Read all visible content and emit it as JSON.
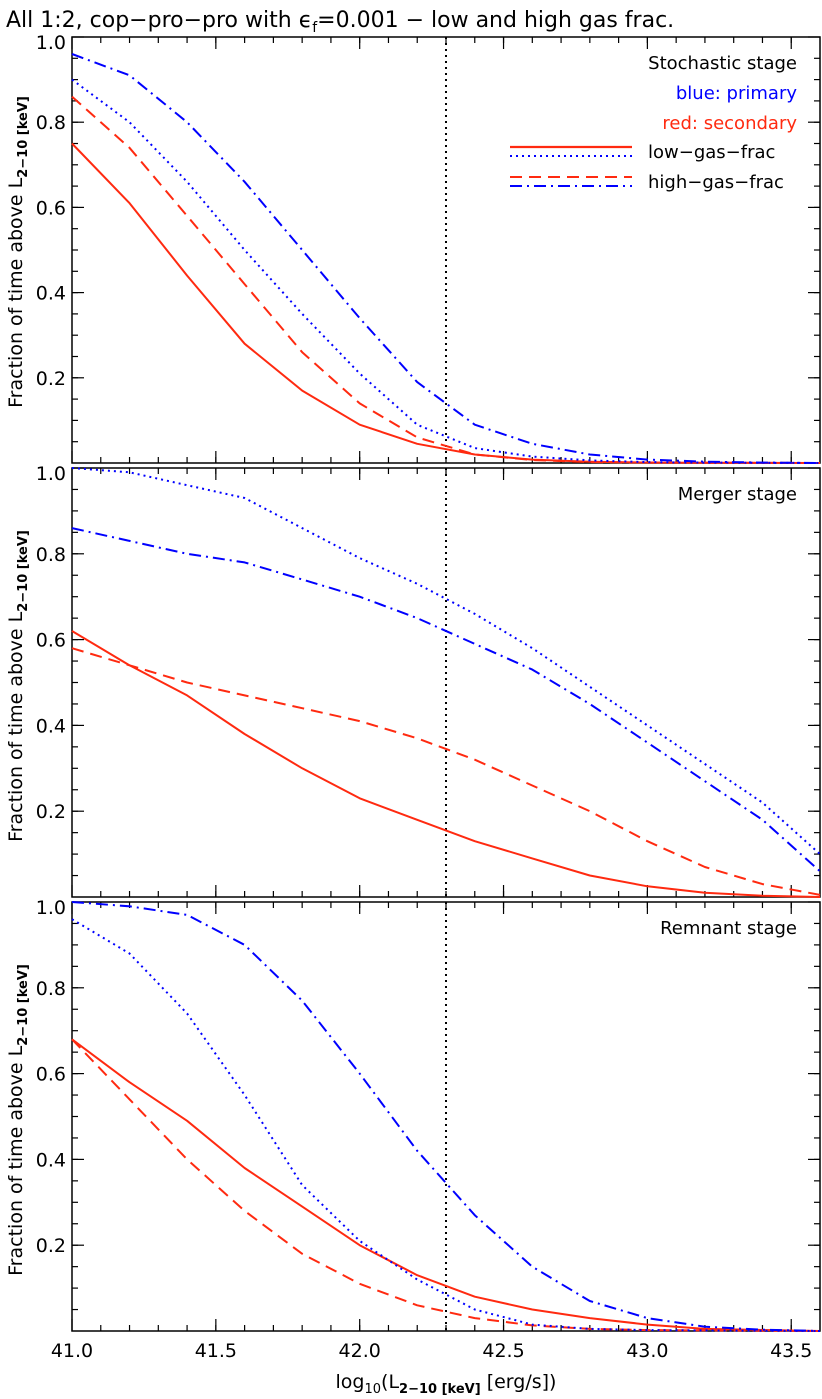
{
  "title_parts": {
    "pre": "All 1:2, cop−pro−pro with ",
    "eps": "ϵ",
    "eps_sub": "f",
    "post": "=0.001 − low and high gas frac."
  },
  "xlabel_parts": {
    "pre": "log",
    "sub1": "10",
    "mid": "(L",
    "sub2": "2−10 [keV]",
    "post": " [erg/s])"
  },
  "ylabel_parts": {
    "pre": "Fraction of time above L",
    "sub": "2−10 [keV]"
  },
  "legend": {
    "primary": "blue: primary",
    "secondary": "red: secondary",
    "low": "low−gas−frac",
    "high": "high−gas−frac"
  },
  "colors": {
    "primary": "#0000ff",
    "secondary": "#ff2a10",
    "refline": "#000000"
  },
  "chart_data": [
    {
      "type": "line",
      "annotation": "Stochastic stage",
      "xlim": [
        41.0,
        43.6
      ],
      "ylim": [
        0.0,
        1.0
      ],
      "xticks": [
        41.0,
        41.5,
        42.0,
        42.5,
        43.0,
        43.5
      ],
      "yticks": [
        0.2,
        0.4,
        0.6,
        0.8,
        1.0
      ],
      "vline_x": 42.3,
      "series": [
        {
          "name": "secondary, low-gas-frac",
          "color": "secondary",
          "dash": "solid",
          "x": [
            41.0,
            41.2,
            41.4,
            41.6,
            41.8,
            42.0,
            42.2,
            42.4,
            42.6,
            42.8,
            43.0,
            43.6
          ],
          "y": [
            0.75,
            0.61,
            0.44,
            0.28,
            0.17,
            0.09,
            0.045,
            0.02,
            0.008,
            0.003,
            0.001,
            0.0
          ]
        },
        {
          "name": "secondary, high-gas-frac",
          "color": "secondary",
          "dash": "dash",
          "x": [
            41.0,
            41.2,
            41.4,
            41.6,
            41.8,
            42.0,
            42.2,
            42.4,
            42.6,
            42.8,
            43.0,
            43.6
          ],
          "y": [
            0.86,
            0.74,
            0.58,
            0.42,
            0.26,
            0.14,
            0.06,
            0.02,
            0.007,
            0.002,
            0.001,
            0.0
          ]
        },
        {
          "name": "primary, low-gas-frac",
          "color": "primary",
          "dash": "dot",
          "x": [
            41.0,
            41.2,
            41.4,
            41.6,
            41.8,
            42.0,
            42.2,
            42.4,
            42.6,
            42.8,
            43.0,
            43.2,
            43.6
          ],
          "y": [
            0.9,
            0.8,
            0.66,
            0.5,
            0.35,
            0.21,
            0.09,
            0.035,
            0.015,
            0.006,
            0.002,
            0.001,
            0.0
          ]
        },
        {
          "name": "primary, high-gas-frac",
          "color": "primary",
          "dash": "dashdot",
          "x": [
            41.0,
            41.2,
            41.4,
            41.6,
            41.8,
            42.0,
            42.2,
            42.4,
            42.6,
            42.8,
            43.0,
            43.2,
            43.4,
            43.6
          ],
          "y": [
            0.96,
            0.91,
            0.8,
            0.66,
            0.5,
            0.34,
            0.19,
            0.09,
            0.045,
            0.02,
            0.008,
            0.003,
            0.001,
            0.0
          ]
        }
      ]
    },
    {
      "type": "line",
      "annotation": "Merger stage",
      "xlim": [
        41.0,
        43.6
      ],
      "ylim": [
        0.0,
        1.0
      ],
      "xticks": [
        41.0,
        41.5,
        42.0,
        42.5,
        43.0,
        43.5
      ],
      "yticks": [
        0.2,
        0.4,
        0.6,
        0.8,
        1.0
      ],
      "vline_x": 42.3,
      "series": [
        {
          "name": "secondary, low-gas-frac",
          "color": "secondary",
          "dash": "solid",
          "x": [
            41.0,
            41.2,
            41.4,
            41.6,
            41.8,
            42.0,
            42.2,
            42.4,
            42.6,
            42.8,
            43.0,
            43.2,
            43.4,
            43.6
          ],
          "y": [
            0.62,
            0.54,
            0.47,
            0.38,
            0.3,
            0.23,
            0.18,
            0.13,
            0.09,
            0.05,
            0.025,
            0.01,
            0.003,
            0.0
          ]
        },
        {
          "name": "secondary, high-gas-frac",
          "color": "secondary",
          "dash": "dash",
          "x": [
            41.0,
            41.2,
            41.4,
            41.6,
            41.8,
            42.0,
            42.2,
            42.4,
            42.6,
            42.8,
            43.0,
            43.2,
            43.4,
            43.6
          ],
          "y": [
            0.58,
            0.54,
            0.5,
            0.47,
            0.44,
            0.41,
            0.37,
            0.32,
            0.26,
            0.2,
            0.13,
            0.07,
            0.03,
            0.005
          ]
        },
        {
          "name": "primary, low-gas-frac",
          "color": "primary",
          "dash": "dot",
          "x": [
            41.0,
            41.2,
            41.4,
            41.6,
            41.8,
            42.0,
            42.2,
            42.4,
            42.6,
            42.8,
            43.0,
            43.2,
            43.4,
            43.6
          ],
          "y": [
            1.0,
            0.99,
            0.96,
            0.93,
            0.86,
            0.79,
            0.73,
            0.66,
            0.58,
            0.49,
            0.4,
            0.31,
            0.22,
            0.1
          ]
        },
        {
          "name": "primary, high-gas-frac",
          "color": "primary",
          "dash": "dashdot",
          "x": [
            41.0,
            41.2,
            41.4,
            41.6,
            41.8,
            42.0,
            42.2,
            42.4,
            42.6,
            42.8,
            43.0,
            43.2,
            43.4,
            43.6
          ],
          "y": [
            0.86,
            0.83,
            0.8,
            0.78,
            0.74,
            0.7,
            0.65,
            0.59,
            0.53,
            0.45,
            0.36,
            0.27,
            0.18,
            0.06
          ]
        }
      ]
    },
    {
      "type": "line",
      "annotation": "Remnant stage",
      "xlim": [
        41.0,
        43.6
      ],
      "ylim": [
        0.0,
        1.0
      ],
      "xticks": [
        41.0,
        41.5,
        42.0,
        42.5,
        43.0,
        43.5
      ],
      "yticks": [
        0.2,
        0.4,
        0.6,
        0.8,
        1.0
      ],
      "vline_x": 42.3,
      "series": [
        {
          "name": "secondary, low-gas-frac",
          "color": "secondary",
          "dash": "solid",
          "x": [
            41.0,
            41.2,
            41.4,
            41.6,
            41.8,
            42.0,
            42.2,
            42.4,
            42.6,
            42.8,
            43.0,
            43.2,
            43.6
          ],
          "y": [
            0.68,
            0.58,
            0.49,
            0.38,
            0.29,
            0.2,
            0.13,
            0.08,
            0.05,
            0.03,
            0.015,
            0.005,
            0.0
          ]
        },
        {
          "name": "secondary, high-gas-frac",
          "color": "secondary",
          "dash": "dash",
          "x": [
            41.0,
            41.2,
            41.4,
            41.6,
            41.8,
            42.0,
            42.2,
            42.4,
            42.6,
            42.8,
            43.0,
            43.6
          ],
          "y": [
            0.68,
            0.54,
            0.4,
            0.28,
            0.18,
            0.11,
            0.06,
            0.03,
            0.013,
            0.005,
            0.002,
            0.0
          ]
        },
        {
          "name": "primary, low-gas-frac",
          "color": "primary",
          "dash": "dot",
          "x": [
            41.0,
            41.2,
            41.4,
            41.6,
            41.8,
            42.0,
            42.2,
            42.4,
            42.6,
            42.8,
            43.0,
            43.6
          ],
          "y": [
            0.96,
            0.88,
            0.74,
            0.55,
            0.34,
            0.21,
            0.12,
            0.05,
            0.015,
            0.005,
            0.002,
            0.0
          ]
        },
        {
          "name": "primary, high-gas-frac",
          "color": "primary",
          "dash": "dashdot",
          "x": [
            41.0,
            41.2,
            41.4,
            41.6,
            41.8,
            42.0,
            42.2,
            42.4,
            42.6,
            42.8,
            43.0,
            43.2,
            43.4,
            43.6
          ],
          "y": [
            1.0,
            0.99,
            0.97,
            0.9,
            0.77,
            0.6,
            0.42,
            0.27,
            0.15,
            0.07,
            0.03,
            0.01,
            0.003,
            0.0
          ]
        }
      ]
    }
  ]
}
